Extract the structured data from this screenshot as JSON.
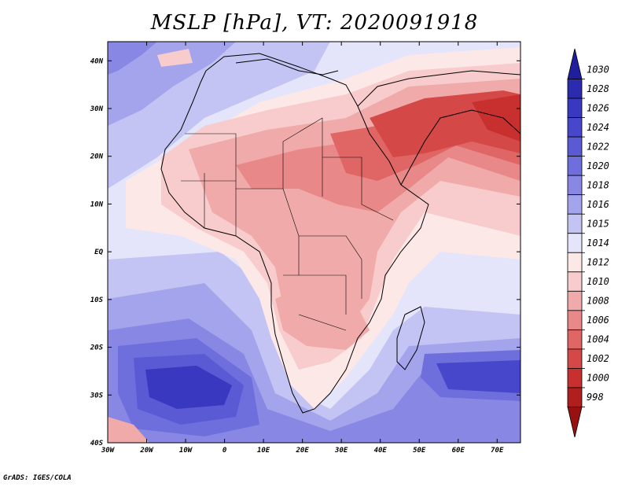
{
  "title": "MSLP [hPa], VT: 2020091918",
  "credit": "GrADS: IGES/COLA",
  "map": {
    "lat_labels": [
      "40N",
      "30N",
      "20N",
      "10N",
      "EQ",
      "10S",
      "20S",
      "30S",
      "40S"
    ],
    "lon_labels": [
      "30W",
      "20W",
      "10W",
      "0",
      "10E",
      "20E",
      "30E",
      "40E",
      "50E",
      "60E",
      "70E"
    ],
    "lon_range": [
      -30,
      76
    ],
    "lat_range": [
      -40,
      44
    ]
  },
  "colorbar": {
    "levels": [
      "1030",
      "1028",
      "1026",
      "1024",
      "1022",
      "1020",
      "1018",
      "1016",
      "1015",
      "1014",
      "1012",
      "1010",
      "1008",
      "1006",
      "1004",
      "1002",
      "1000",
      "998"
    ],
    "colors": [
      "#1e1e9e",
      "#2b2bb0",
      "#3838c0",
      "#4747cc",
      "#5a5ad4",
      "#6e6edc",
      "#8888e4",
      "#a4a4ec",
      "#c4c4f4",
      "#e4e4fa",
      "#fde8e8",
      "#f8cccc",
      "#f0aaaa",
      "#e88888",
      "#e06666",
      "#d44848",
      "#c83030",
      "#b01e1e",
      "#981010"
    ]
  }
}
